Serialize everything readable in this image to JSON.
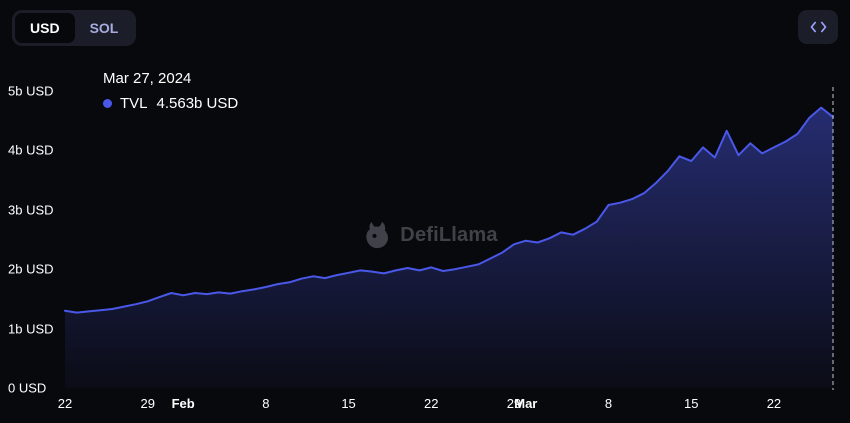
{
  "header": {
    "currency_toggle": {
      "options": [
        "USD",
        "SOL"
      ],
      "selected": "USD"
    },
    "embed_button": {
      "icon": "code-embed-icon"
    }
  },
  "tooltip": {
    "date": "Mar 27, 2024",
    "series_label": "TVL",
    "value": "4.563b USD"
  },
  "watermark": "DefiLlama",
  "chart_data": {
    "type": "area",
    "title": "",
    "xlabel": "",
    "ylabel": "",
    "ylim": [
      0,
      5
    ],
    "unit": "b USD",
    "grid": false,
    "legend_position": "none",
    "line_color": "#4a58ea",
    "crosshair_index": 65,
    "y_ticks": [
      "5b USD",
      "4b USD",
      "3b USD",
      "2b USD",
      "1b USD",
      "0 USD"
    ],
    "x_ticks": [
      {
        "label": "22",
        "index": 0,
        "bold": false
      },
      {
        "label": "29",
        "index": 7,
        "bold": false
      },
      {
        "label": "Feb",
        "index": 10,
        "bold": true
      },
      {
        "label": "8",
        "index": 17,
        "bold": false
      },
      {
        "label": "15",
        "index": 24,
        "bold": false
      },
      {
        "label": "22",
        "index": 31,
        "bold": false
      },
      {
        "label": "29",
        "index": 38,
        "bold": false
      },
      {
        "label": "Mar",
        "index": 39,
        "bold": true
      },
      {
        "label": "8",
        "index": 46,
        "bold": false
      },
      {
        "label": "15",
        "index": 53,
        "bold": false
      },
      {
        "label": "22",
        "index": 60,
        "bold": false
      }
    ],
    "x": [
      "Jan 22",
      "Jan 23",
      "Jan 24",
      "Jan 25",
      "Jan 26",
      "Jan 27",
      "Jan 28",
      "Jan 29",
      "Jan 30",
      "Jan 31",
      "Feb 1",
      "Feb 2",
      "Feb 3",
      "Feb 4",
      "Feb 5",
      "Feb 6",
      "Feb 7",
      "Feb 8",
      "Feb 9",
      "Feb 10",
      "Feb 11",
      "Feb 12",
      "Feb 13",
      "Feb 14",
      "Feb 15",
      "Feb 16",
      "Feb 17",
      "Feb 18",
      "Feb 19",
      "Feb 20",
      "Feb 21",
      "Feb 22",
      "Feb 23",
      "Feb 24",
      "Feb 25",
      "Feb 26",
      "Feb 27",
      "Feb 28",
      "Feb 29",
      "Mar 1",
      "Mar 2",
      "Mar 3",
      "Mar 4",
      "Mar 5",
      "Mar 6",
      "Mar 7",
      "Mar 8",
      "Mar 9",
      "Mar 10",
      "Mar 11",
      "Mar 12",
      "Mar 13",
      "Mar 14",
      "Mar 15",
      "Mar 16",
      "Mar 17",
      "Mar 18",
      "Mar 19",
      "Mar 20",
      "Mar 21",
      "Mar 22",
      "Mar 23",
      "Mar 24",
      "Mar 25",
      "Mar 26",
      "Mar 27"
    ],
    "series": [
      {
        "name": "TVL",
        "values": [
          1.3,
          1.27,
          1.29,
          1.31,
          1.33,
          1.37,
          1.41,
          1.46,
          1.53,
          1.6,
          1.56,
          1.6,
          1.58,
          1.61,
          1.59,
          1.63,
          1.66,
          1.7,
          1.75,
          1.78,
          1.84,
          1.88,
          1.85,
          1.9,
          1.94,
          1.98,
          1.96,
          1.93,
          1.98,
          2.02,
          1.98,
          2.03,
          1.97,
          2.0,
          2.04,
          2.08,
          2.18,
          2.28,
          2.42,
          2.48,
          2.45,
          2.52,
          2.62,
          2.58,
          2.68,
          2.8,
          3.08,
          3.12,
          3.18,
          3.28,
          3.45,
          3.65,
          3.9,
          3.82,
          4.05,
          3.88,
          4.33,
          3.92,
          4.12,
          3.95,
          4.05,
          4.15,
          4.28,
          4.55,
          4.72,
          4.563
        ]
      }
    ]
  }
}
